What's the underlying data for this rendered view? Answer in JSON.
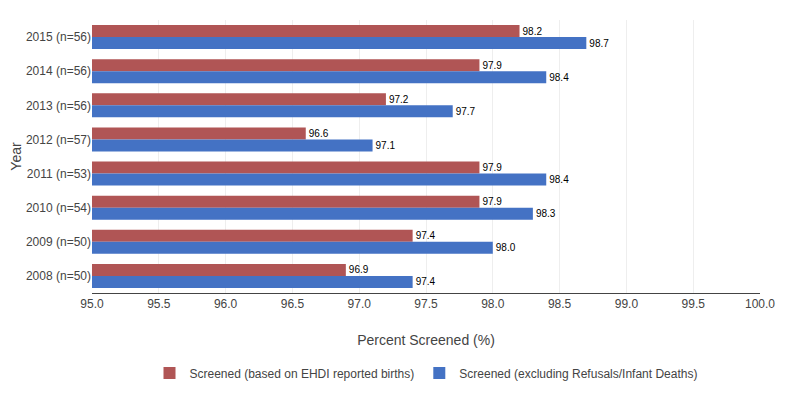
{
  "chart_data": {
    "type": "bar",
    "orientation": "horizontal",
    "xlabel": "Percent Screened (%)",
    "ylabel": "Year",
    "categories": [
      "2015 (n=56)",
      "2014 (n=56)",
      "2013 (n=56)",
      "2012 (n=57)",
      "2011 (n=53)",
      "2010 (n=54)",
      "2009 (n=50)",
      "2008 (n=50)"
    ],
    "series": [
      {
        "name": "Screened (based on EHDI reported births)",
        "color": "#B05555",
        "values": [
          98.2,
          97.9,
          97.2,
          96.6,
          97.9,
          97.9,
          97.4,
          96.9
        ]
      },
      {
        "name": "Screened (excluding Refusals/Infant Deaths)",
        "color": "#4472C4",
        "values": [
          98.7,
          98.4,
          97.7,
          97.1,
          98.4,
          98.3,
          98.0,
          97.4
        ],
        "value_labels": [
          "98.7",
          "98.4",
          "97.7",
          "97.1",
          "98.4",
          "98.3",
          "98.0",
          "97.4"
        ]
      }
    ],
    "xlim": [
      95.0,
      100.0
    ],
    "xticks": [
      {
        "value": 95.0,
        "label": "95.0"
      },
      95.5,
      {
        "value": 96.0,
        "label": "96.0"
      },
      96.5,
      {
        "value": 97.0,
        "label": "97.0"
      },
      97.5,
      {
        "value": 98.0,
        "label": "98.0"
      },
      98.5,
      {
        "value": 99.0,
        "label": "99.0"
      },
      99.5,
      {
        "value": 100.0,
        "label": "100.0"
      }
    ],
    "grid": true,
    "legend": "bottom",
    "data_labels": true
  }
}
